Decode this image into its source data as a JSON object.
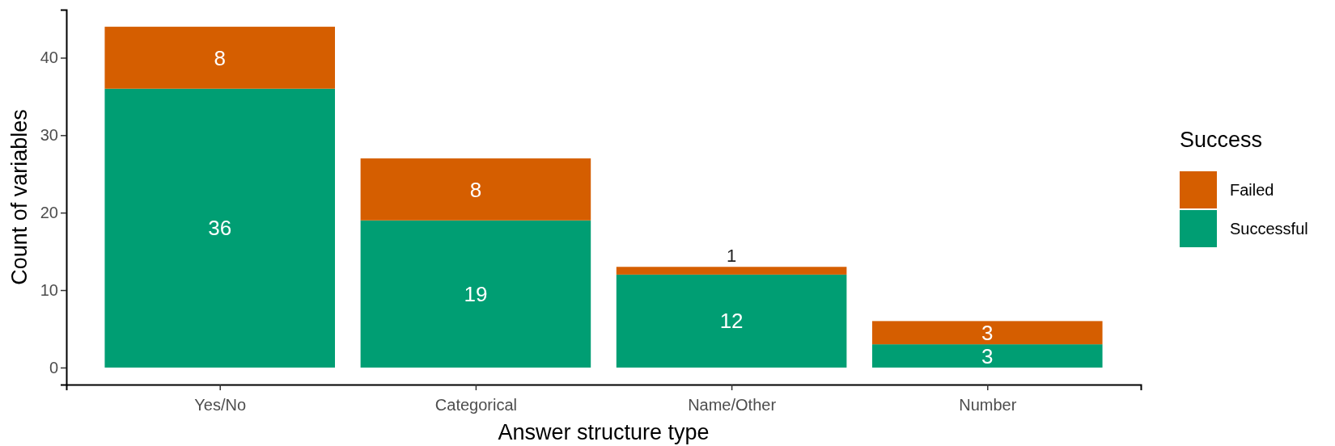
{
  "chart_data": {
    "type": "bar",
    "stacked": true,
    "xlabel": "Answer structure type",
    "ylabel": "Count of variables",
    "legend_title": "Success",
    "legend": "right",
    "data_labels": true,
    "grid": false,
    "categories": [
      "Yes/No",
      "Categorical",
      "Name/Other",
      "Number"
    ],
    "ylim": [
      -2.2,
      46.2
    ],
    "yticks": [
      0,
      10,
      20,
      30,
      40
    ],
    "series": [
      {
        "name": "Successful",
        "color": "#009e73",
        "values": [
          36,
          19,
          12,
          3
        ]
      },
      {
        "name": "Failed",
        "color": "#d55e00",
        "values": [
          8,
          8,
          1,
          3
        ]
      }
    ]
  }
}
